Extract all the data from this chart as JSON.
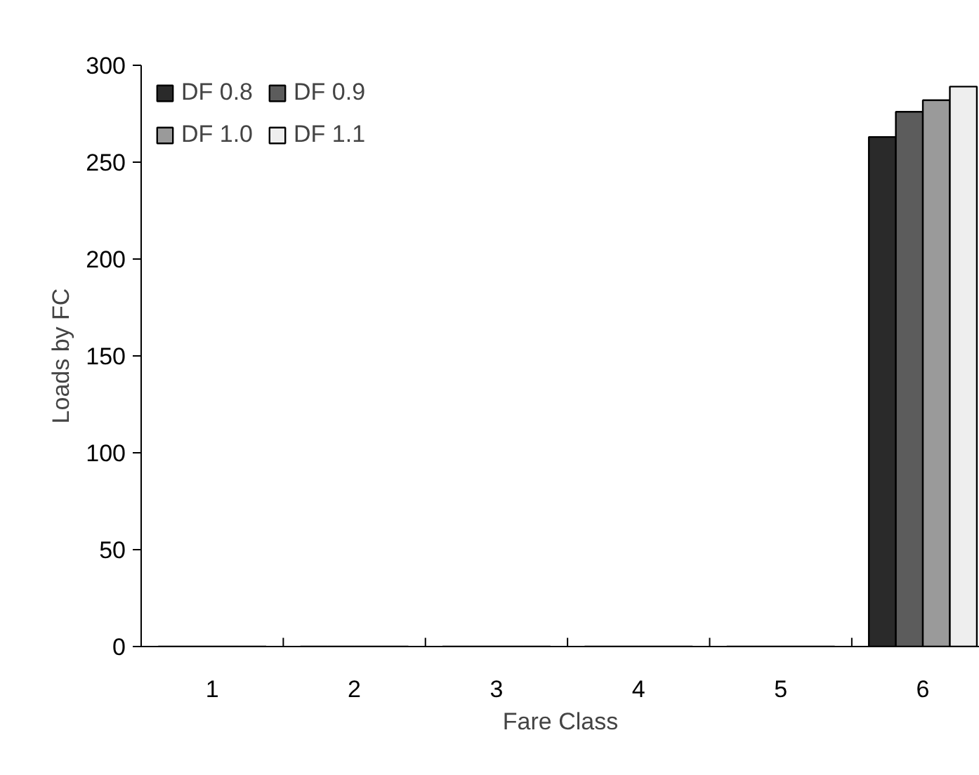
{
  "chart_data": {
    "type": "bar",
    "xlabel": "Fare Class",
    "ylabel": "Loads by FC",
    "categories": [
      "1",
      "2",
      "3",
      "4",
      "5",
      "6"
    ],
    "series": [
      {
        "name": "DF 0.8",
        "color": "#2a2a2a",
        "values": [
          0,
          0,
          0,
          0,
          0,
          263
        ]
      },
      {
        "name": "DF 0.9",
        "color": "#5c5c5c",
        "values": [
          0,
          0,
          0,
          0,
          0,
          276
        ]
      },
      {
        "name": "DF 1.0",
        "color": "#9a9a9a",
        "values": [
          0,
          0,
          0,
          0,
          0,
          282
        ]
      },
      {
        "name": "DF 1.1",
        "color": "#eeeeee",
        "values": [
          0,
          0,
          0,
          0,
          0,
          289
        ]
      }
    ],
    "ylim": [
      0,
      300
    ],
    "yticks": [
      0,
      50,
      100,
      150,
      200,
      250,
      300
    ],
    "grid": false,
    "legend": "top left"
  }
}
